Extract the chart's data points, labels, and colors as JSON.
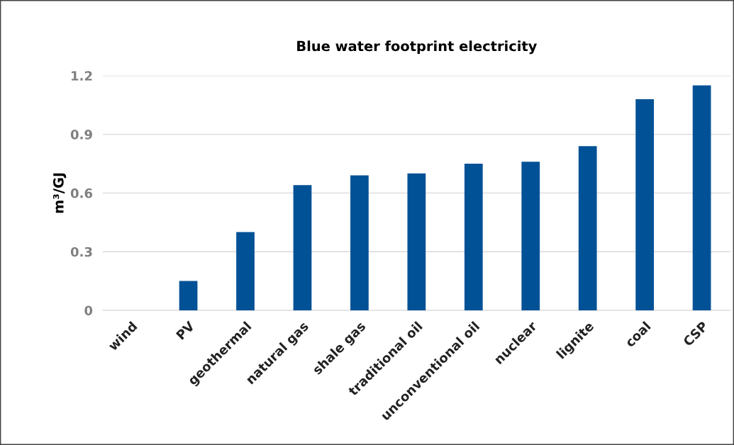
{
  "chart_data": {
    "type": "bar",
    "title": "Blue water footprint electricity",
    "ylabel": "m³/GJ",
    "categories": [
      "wind",
      "PV",
      "geothermal",
      "natural gas",
      "shale gas",
      "traditional oil",
      "unconventional oil",
      "nuclear",
      "lignite",
      "coal",
      "CSP"
    ],
    "values": [
      0,
      0.15,
      0.4,
      0.64,
      0.69,
      0.7,
      0.75,
      0.76,
      0.84,
      1.08,
      1.15
    ],
    "color": "#005196",
    "ylim": [
      0,
      1.2
    ],
    "yticks": [
      0,
      0.3,
      0.6,
      0.9,
      1.2
    ],
    "grid": "y"
  }
}
